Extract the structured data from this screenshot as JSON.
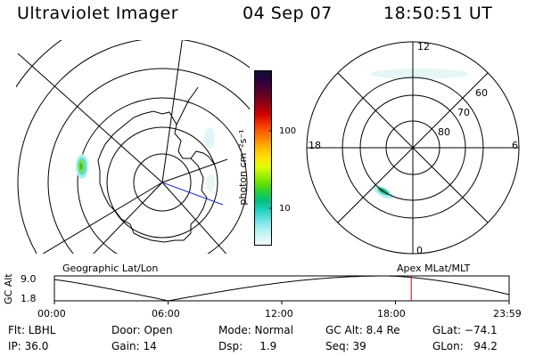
{
  "header": {
    "instrument": "Ultraviolet Imager",
    "date": "04 Sep 07",
    "time": "18:50:51 UT"
  },
  "polar_plot": {
    "labels": {
      "top": "12",
      "left": "18",
      "right": "6",
      "bottom": "0"
    },
    "rings": [
      "60",
      "70",
      "80"
    ]
  },
  "colorbar": {
    "unit_label": "photon cm⁻²s⁻¹",
    "ticks": [
      "100",
      "10"
    ],
    "colors": [
      "#101030",
      "#2a0040",
      "#4a0030",
      "#700020",
      "#a00010",
      "#d00000",
      "#f03000",
      "#ff6000",
      "#ff9000",
      "#ffc000",
      "#ffe000",
      "#e0ff00",
      "#a0f000",
      "#60e000",
      "#20d040",
      "#00c080",
      "#20d0c0",
      "#60e0e0",
      "#a0f0f0",
      "#d0f8f8",
      "#f0fcfc"
    ]
  },
  "timeline": {
    "left_title": "Geographic Lat/Lon",
    "right_title": "Apex MLat/MLT",
    "ylabel": "GC Alt",
    "y_ticks": [
      "9.0",
      "1.8"
    ],
    "x_ticks": [
      "00:00",
      "06:00",
      "12:00",
      "18:00",
      "23:59"
    ],
    "marker_time": "18:50",
    "marker_color": "#e00000"
  },
  "footer": {
    "flt": "Flt: LBHL",
    "ip": "IP: 36.0",
    "door": "Door: Open",
    "gain": "Gain: 14",
    "mode": "Mode: Normal",
    "dsp": "Dsp:     1.9",
    "gc_alt": "GC Alt: 8.4 Re",
    "seq": "Seq: 39",
    "glat": "GLat: −74.1",
    "glon": "GLon:   94.2"
  }
}
